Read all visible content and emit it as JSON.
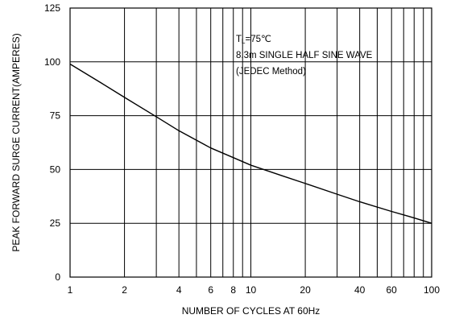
{
  "chart_data": {
    "type": "line",
    "title": "",
    "xlabel": "NUMBER OF CYCLES AT 60Hz",
    "ylabel": "PEAK FORWARD SURGE CURRENT(AMPERES)",
    "x_scale": "log",
    "xlim": [
      1,
      100
    ],
    "ylim": [
      0,
      125
    ],
    "x_ticks": [
      1,
      2,
      4,
      6,
      8,
      10,
      20,
      40,
      60,
      100
    ],
    "x_gridlines": [
      1,
      2,
      3,
      4,
      5,
      6,
      7,
      8,
      9,
      10,
      20,
      30,
      40,
      50,
      60,
      70,
      80,
      90,
      100
    ],
    "y_ticks": [
      0,
      25,
      50,
      75,
      100,
      125
    ],
    "grid": true,
    "legend": "none",
    "series": [
      {
        "color": "#000000",
        "x": [
          1,
          1.5,
          2,
          3,
          4,
          6,
          8,
          10,
          15,
          20,
          30,
          40,
          60,
          80,
          100
        ],
        "y": [
          99,
          90,
          83.5,
          74.5,
          68,
          60,
          55.5,
          52,
          47,
          43.5,
          38.5,
          35,
          30.5,
          27.5,
          25
        ]
      }
    ],
    "annotation": {
      "line1_main": "T",
      "line1_sub": "L",
      "line1_rest": "=75℃",
      "line2": "8.3m SINGLE HALF SINE WAVE",
      "line3": "(JEDEC Method)"
    }
  }
}
